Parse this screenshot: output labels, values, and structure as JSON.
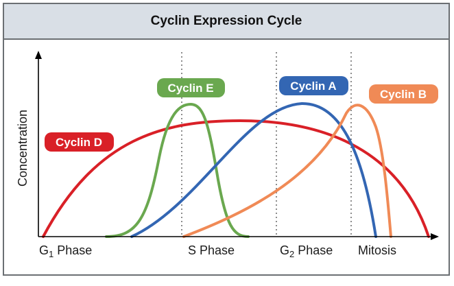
{
  "title": "Cyclin Expression Cycle",
  "axis": {
    "y_label": "Concentration"
  },
  "phases": [
    {
      "name": "G",
      "sub": "1",
      "suffix": " Phase"
    },
    {
      "name": "S Phase",
      "sub": "",
      "suffix": ""
    },
    {
      "name": "G",
      "sub": "2",
      "suffix": " Phase"
    },
    {
      "name": "Mitosis",
      "sub": "",
      "suffix": ""
    }
  ],
  "cyclins": [
    {
      "name": "Cyclin D",
      "color": "#d92027"
    },
    {
      "name": "Cyclin E",
      "color": "#6aa84f"
    },
    {
      "name": "Cyclin A",
      "color": "#3366b3"
    },
    {
      "name": "Cyclin B",
      "color": "#f08a56"
    }
  ],
  "colors": {
    "title_bg": "#d9dfe6",
    "frame": "#6b6f73",
    "phase_divider": "#707070"
  }
}
